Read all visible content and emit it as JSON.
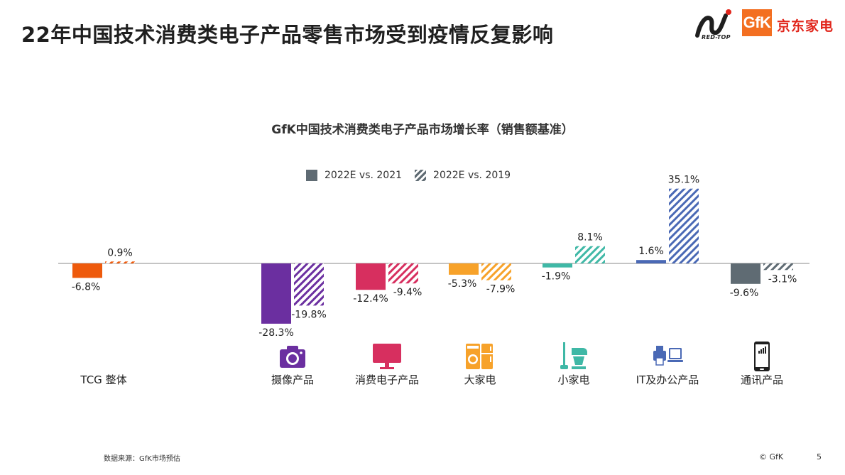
{
  "header": {
    "title": "22年中国技术消费类电子产品零售市场受到疫情反复影响",
    "logo_redtop_text": "RED-TOP",
    "logo_gfk_text": "GfK",
    "logo_jd_text": "京东家电"
  },
  "footer": {
    "source": "数据来源：GfK市场预估",
    "copyright": "© GfK",
    "page_number": "5"
  },
  "colors": {
    "tcg": "#ee5a0c",
    "camera": "#6b2fa0",
    "ce": "#d72f5f",
    "mda": "#f7a22a",
    "sda": "#3fb8a6",
    "it": "#4a69b5",
    "telecom": "#5f6b73"
  },
  "chart_data": {
    "type": "bar",
    "title": "GfK中国技术消费类电子产品市场增长率（销售额基准）",
    "legend_position": "top",
    "grid": false,
    "categories": [
      "TCG 整体",
      "摄像产品",
      "消费电子产品",
      "大家电",
      "小家电",
      "IT及办公产品",
      "通讯产品"
    ],
    "series": [
      {
        "name": "2022E vs. 2021",
        "style": "solid",
        "values": [
          -6.8,
          -28.3,
          -12.4,
          -5.3,
          -1.9,
          1.6,
          -9.6
        ],
        "labels": [
          "-6.8%",
          "-28.3%",
          "-12.4%",
          "-5.3%",
          "-1.9%",
          "1.6%",
          "-9.6%"
        ]
      },
      {
        "name": "2022E vs. 2019",
        "style": "hatched",
        "values": [
          0.9,
          -19.8,
          -9.4,
          -7.9,
          8.1,
          35.1,
          -3.1
        ],
        "labels": [
          "0.9%",
          "-19.8%",
          "-9.4%",
          "-7.9%",
          "8.1%",
          "35.1%",
          "-3.1%"
        ]
      }
    ],
    "category_icons": [
      "",
      "camera-icon",
      "monitor-icon",
      "washer-fridge-icon",
      "vacuum-mixer-icon",
      "printer-laptop-icon",
      "smartphone-icon"
    ]
  }
}
